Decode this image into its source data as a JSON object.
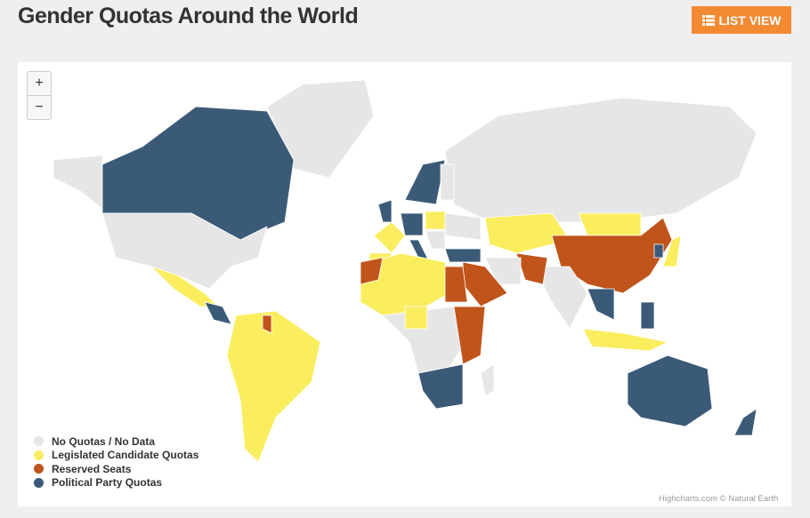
{
  "header": {
    "title": "Gender Quotas Around the World",
    "button": "LIST VIEW"
  },
  "map": {
    "zoom_in": "+",
    "zoom_out": "−",
    "legend": [
      {
        "name": "No Quotas / No Data",
        "color": "#e6e6e6"
      },
      {
        "name": "Legislated Candidate Quotas",
        "color": "#faee5f"
      },
      {
        "name": "Reserved Seats",
        "color": "#c0541b"
      },
      {
        "name": "Political Party Quotas",
        "color": "#3b5a78"
      }
    ],
    "credits": "Highcharts.com © Natural Earth"
  }
}
